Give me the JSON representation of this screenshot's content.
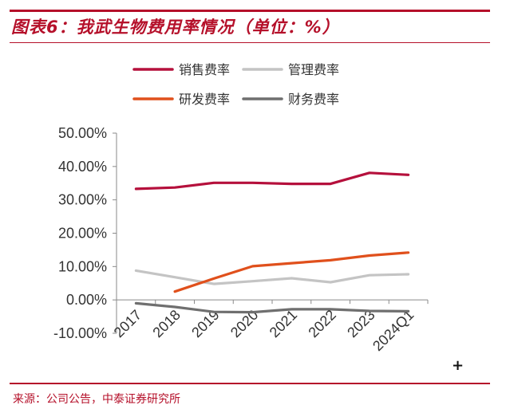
{
  "title": "图表6：我武生物费用率情况（单位：%）",
  "source": "来源：公司公告，中泰证券研究所",
  "corner_mark": "+",
  "colors": {
    "accent": "#b5102a",
    "selling": "#b5103c",
    "admin": "#c4c4c4",
    "rnd": "#e0501c",
    "finance": "#6f6f6f"
  },
  "chart_data": {
    "type": "line",
    "title": "",
    "xlabel": "",
    "ylabel": "",
    "categories": [
      "2017",
      "2018",
      "2019",
      "2020",
      "2021",
      "2022",
      "2023",
      "2024Q1"
    ],
    "ylim": [
      -10,
      50
    ],
    "yticks": [
      50,
      40,
      30,
      20,
      10,
      0,
      -10
    ],
    "ytick_labels": [
      "50.00%",
      "40.00%",
      "30.00%",
      "20.00%",
      "10.00%",
      "0.00%",
      "-10.00%"
    ],
    "legend_position": "top",
    "series": [
      {
        "name": "销售费率",
        "color": "#b5103c",
        "values": [
          33.3,
          33.7,
          35.1,
          35.1,
          34.8,
          34.8,
          38.1,
          37.5
        ]
      },
      {
        "name": "管理费率",
        "color": "#c4c4c4",
        "values": [
          8.8,
          6.8,
          4.8,
          5.6,
          6.5,
          5.3,
          7.4,
          7.7
        ]
      },
      {
        "name": "研发费率",
        "color": "#e0501c",
        "values": [
          null,
          2.5,
          6.4,
          10.1,
          11.0,
          11.9,
          13.3,
          14.2
        ]
      },
      {
        "name": "财务费率",
        "color": "#6f6f6f",
        "values": [
          -1.0,
          -2.1,
          -3.6,
          -3.7,
          -2.8,
          -2.8,
          -3.3,
          -3.4
        ]
      }
    ]
  }
}
